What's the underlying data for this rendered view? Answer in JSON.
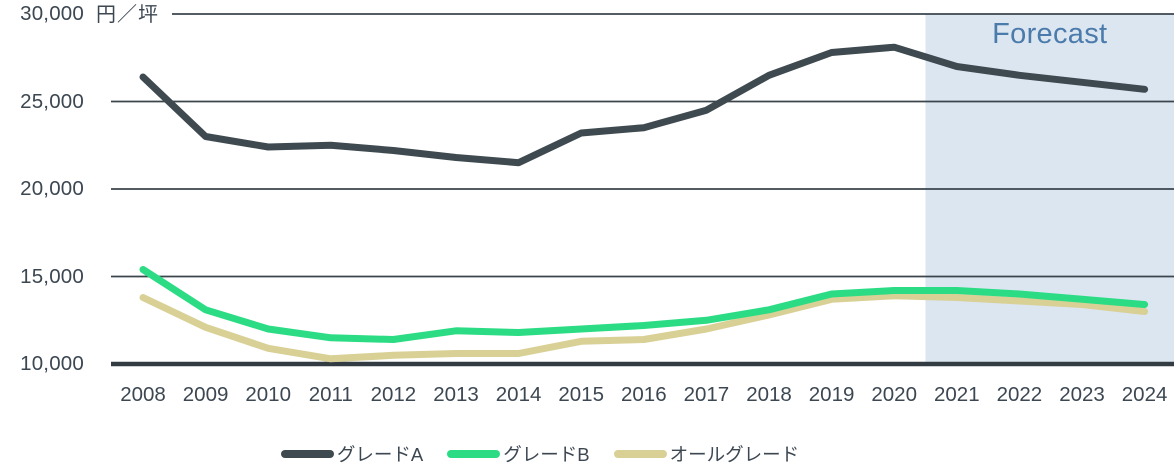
{
  "axis": {
    "unit_label": "円／坪",
    "y_tick_labels": [
      "30,000",
      "25,000",
      "20,000",
      "15,000",
      "10,000"
    ],
    "y_ticks": [
      30000,
      25000,
      20000,
      15000,
      10000
    ]
  },
  "chart_data": {
    "type": "line",
    "title": "",
    "ylabel": "円／坪",
    "ylim": [
      10000,
      30000
    ],
    "grid": "horizontal",
    "legend_position": "bottom",
    "categories": [
      "2008",
      "2009",
      "2010",
      "2011",
      "2012",
      "2013",
      "2014",
      "2015",
      "2016",
      "2017",
      "2018",
      "2019",
      "2020",
      "2021",
      "2022",
      "2023",
      "2024"
    ],
    "series": [
      {
        "name": "グレードA",
        "color": "#3E4A50",
        "values": [
          26400,
          23000,
          22400,
          22500,
          22200,
          21800,
          21500,
          23200,
          23500,
          24500,
          26500,
          27800,
          28100,
          27000,
          26500,
          26100,
          25700
        ]
      },
      {
        "name": "グレードB",
        "color": "#2BDC84",
        "values": [
          15400,
          13100,
          12000,
          11500,
          11400,
          11900,
          11800,
          12000,
          12200,
          12500,
          13100,
          14000,
          14200,
          14200,
          14000,
          13700,
          13400
        ]
      },
      {
        "name": "オールグレード",
        "color": "#D9D096",
        "values": [
          13800,
          12100,
          10900,
          10300,
          10500,
          10600,
          10600,
          11300,
          11400,
          12000,
          12800,
          13700,
          13900,
          13800,
          13600,
          13400,
          13000
        ]
      }
    ],
    "forecast_region": {
      "label": "Forecast",
      "x_start": 2020.5,
      "x_end": 2024.5,
      "bg_color": "#DCE6F1",
      "label_color": "#4B7BAB"
    }
  },
  "legend": {
    "items": [
      {
        "label": "グレードA",
        "color": "#3E4A50"
      },
      {
        "label": "グレードB",
        "color": "#2BDC84"
      },
      {
        "label": "オールグレード",
        "color": "#D9D096"
      }
    ]
  },
  "colors": {
    "gridline": "#3A454C",
    "baseline": "#333C42",
    "text": "#3C4752"
  }
}
